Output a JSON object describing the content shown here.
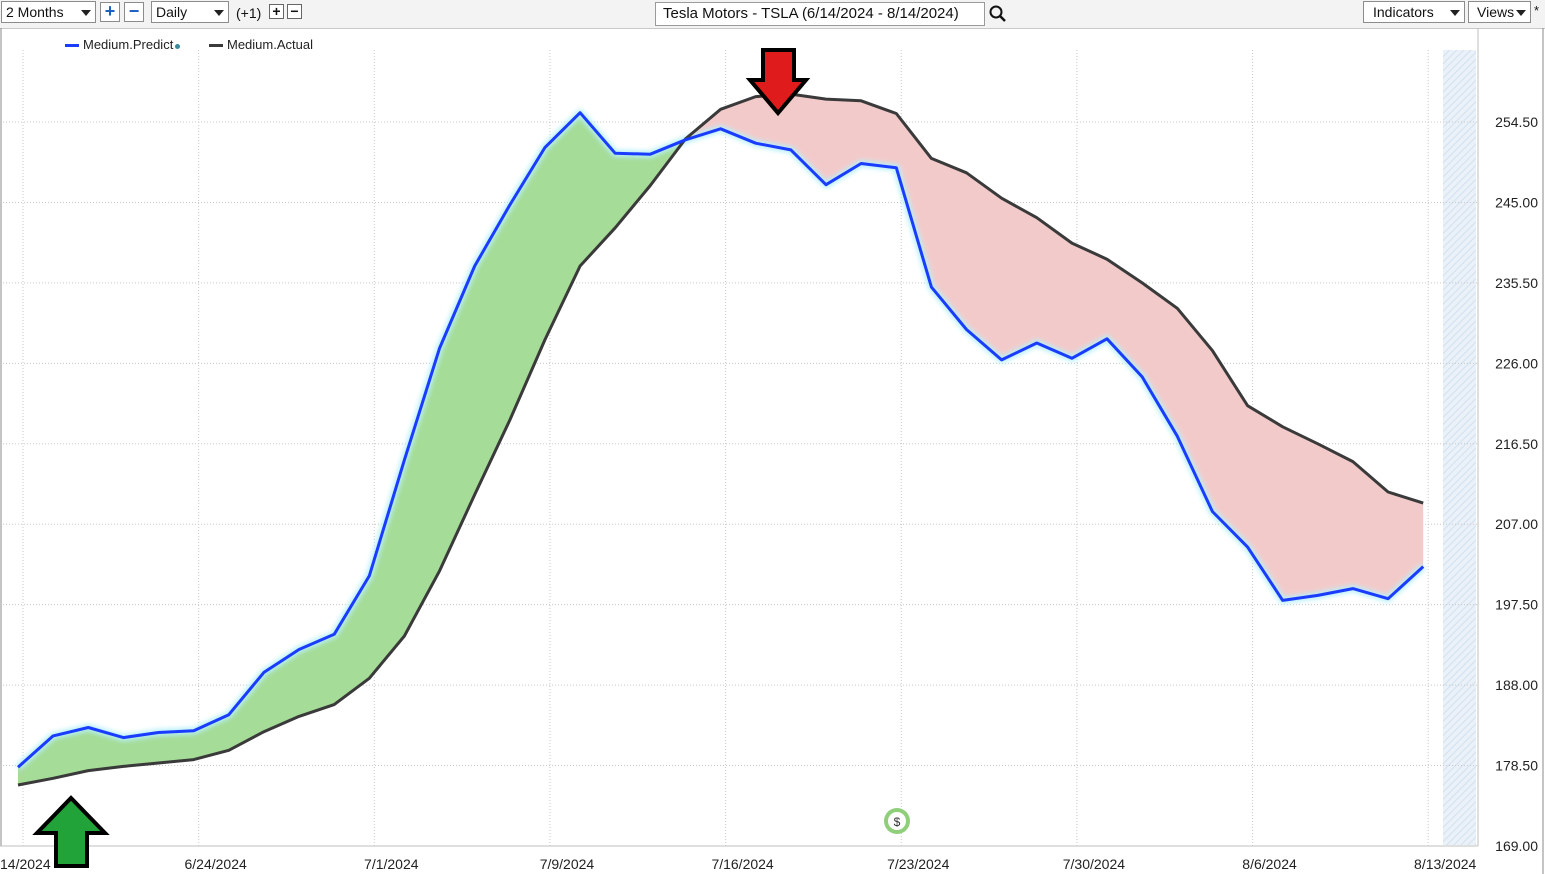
{
  "toolbar": {
    "period_label": "2 Months",
    "interval_label": "Daily",
    "offset_label": "(+1)",
    "title": "Tesla Motors - TSLA (6/14/2024 - 8/14/2024)",
    "indicators_label": "Indicators",
    "views_label": "Views",
    "views_mark": "*"
  },
  "legend": {
    "predict_label": "Medium.Predict",
    "actual_label": "Medium.Actual"
  },
  "colors": {
    "predict": "#1a3cff",
    "actual": "#3a3a3a",
    "bull_fill": "#a5dc98",
    "bear_fill": "#f3caca",
    "up_arrow": "#22a33a",
    "down_arrow": "#e01b1b"
  },
  "markers": {
    "dividend_label": "$"
  },
  "chart_data": {
    "type": "line",
    "x_tick_labels": [
      "14/2024",
      "6/24/2024",
      "7/1/2024",
      "7/9/2024",
      "7/16/2024",
      "7/23/2024",
      "7/30/2024",
      "8/6/2024",
      "8/13/2024"
    ],
    "y_tick_labels": [
      "254.50",
      "245.00",
      "235.50",
      "226.00",
      "216.50",
      "207.00",
      "197.50",
      "188.00",
      "178.50",
      "169.00"
    ],
    "ylim": [
      169.0,
      258.0
    ],
    "x_dates": [
      "6/14",
      "6/17",
      "6/18",
      "6/20",
      "6/21",
      "6/24",
      "6/25",
      "6/26",
      "6/27",
      "6/28",
      "7/1",
      "7/2",
      "7/3",
      "7/5",
      "7/8",
      "7/9",
      "7/10",
      "7/11",
      "7/12",
      "7/15",
      "7/16",
      "7/17",
      "7/18",
      "7/19",
      "7/22",
      "7/23",
      "7/24",
      "7/25",
      "7/26",
      "7/29",
      "7/30",
      "7/31",
      "8/1",
      "8/2",
      "8/5",
      "8/6",
      "8/7",
      "8/8",
      "8/9",
      "8/12",
      "8/13"
    ],
    "series": [
      {
        "name": "Medium.Predict",
        "values": [
          178.3,
          182.0,
          183.0,
          181.8,
          182.4,
          182.6,
          184.5,
          189.5,
          192.2,
          194.0,
          200.9,
          214.6,
          227.8,
          237.5,
          244.7,
          251.5,
          255.6,
          250.8,
          250.7,
          252.4,
          253.7,
          252.0,
          251.2,
          247.1,
          249.6,
          249.1,
          235.0,
          230.0,
          226.4,
          228.4,
          226.6,
          228.9,
          224.4,
          217.4,
          208.5,
          204.3,
          198.0,
          198.6,
          199.4,
          198.2,
          202.0
        ]
      },
      {
        "name": "Medium.Actual",
        "values": [
          176.2,
          177.0,
          177.9,
          178.4,
          178.8,
          179.2,
          180.3,
          182.5,
          184.3,
          185.7,
          188.8,
          193.8,
          201.5,
          210.5,
          219.3,
          228.8,
          237.5,
          242.0,
          247.0,
          252.5,
          256.0,
          257.5,
          257.8,
          257.2,
          257.0,
          255.5,
          250.2,
          248.5,
          245.5,
          243.2,
          240.2,
          238.3,
          235.5,
          232.5,
          227.5,
          221.0,
          218.5,
          216.5,
          214.4,
          210.8,
          209.5
        ]
      }
    ],
    "grid": true,
    "legend_position": "top-left"
  }
}
